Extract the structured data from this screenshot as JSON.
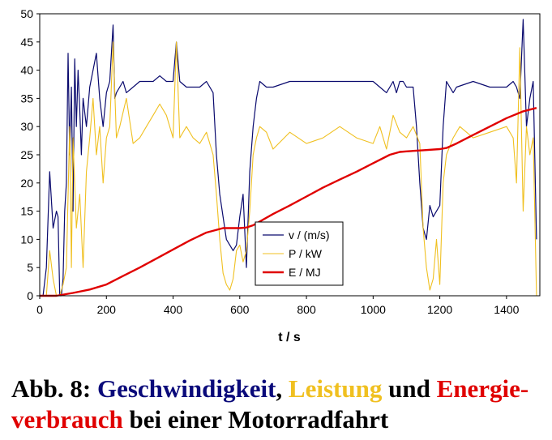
{
  "chart_data": {
    "type": "line",
    "xlabel": "t / s",
    "ylabel": "",
    "xlim": [
      0,
      1500
    ],
    "ylim": [
      0,
      50
    ],
    "xticks": [
      0,
      200,
      400,
      600,
      800,
      1000,
      1200,
      1400
    ],
    "yticks": [
      0,
      5,
      10,
      15,
      20,
      25,
      30,
      35,
      40,
      45,
      50
    ],
    "grid": false,
    "legend_placement": "center-bottom",
    "series": [
      {
        "name": "v / (m/s)",
        "color": "#0a0a6e",
        "x": [
          0,
          10,
          20,
          30,
          40,
          50,
          55,
          60,
          65,
          70,
          75,
          80,
          85,
          90,
          95,
          100,
          105,
          110,
          115,
          120,
          125,
          130,
          140,
          150,
          160,
          170,
          180,
          190,
          200,
          210,
          220,
          225,
          230,
          240,
          250,
          260,
          280,
          300,
          320,
          340,
          360,
          380,
          400,
          410,
          420,
          440,
          460,
          480,
          500,
          520,
          530,
          540,
          550,
          560,
          570,
          580,
          590,
          600,
          610,
          620,
          630,
          640,
          650,
          660,
          680,
          700,
          750,
          800,
          850,
          900,
          950,
          1000,
          1020,
          1040,
          1050,
          1060,
          1070,
          1080,
          1090,
          1100,
          1110,
          1120,
          1130,
          1140,
          1150,
          1160,
          1170,
          1180,
          1190,
          1200,
          1210,
          1220,
          1230,
          1240,
          1250,
          1300,
          1350,
          1400,
          1420,
          1430,
          1440,
          1450,
          1460,
          1470,
          1480,
          1490
        ],
        "values": [
          0,
          0,
          5,
          22,
          12,
          15,
          14,
          0,
          0,
          3,
          15,
          20,
          43,
          25,
          37,
          15,
          42,
          30,
          40,
          33,
          25,
          35,
          30,
          37,
          40,
          43,
          35,
          30,
          36,
          38,
          48,
          35,
          36,
          37,
          38,
          36,
          37,
          38,
          38,
          38,
          39,
          38,
          38,
          45,
          38,
          37,
          37,
          37,
          38,
          36,
          25,
          18,
          14,
          10,
          9,
          8,
          9,
          14,
          18,
          5,
          22,
          30,
          35,
          38,
          37,
          37,
          38,
          38,
          38,
          38,
          38,
          38,
          37,
          36,
          37,
          38,
          36,
          38,
          38,
          37,
          37,
          37,
          30,
          20,
          12,
          10,
          16,
          14,
          15,
          16,
          30,
          38,
          37,
          36,
          37,
          38,
          37,
          37,
          38,
          37,
          35,
          49,
          30,
          35,
          38,
          10
        ]
      },
      {
        "name": "P / kW",
        "color": "#f0c020",
        "x": [
          0,
          10,
          20,
          30,
          40,
          50,
          60,
          70,
          80,
          90,
          95,
          100,
          110,
          120,
          130,
          140,
          150,
          160,
          170,
          180,
          190,
          200,
          210,
          220,
          230,
          240,
          260,
          280,
          300,
          320,
          340,
          360,
          380,
          400,
          410,
          420,
          440,
          460,
          480,
          500,
          520,
          530,
          540,
          550,
          560,
          570,
          580,
          590,
          600,
          610,
          620,
          630,
          640,
          650,
          660,
          680,
          700,
          750,
          800,
          850,
          900,
          950,
          1000,
          1020,
          1040,
          1060,
          1080,
          1100,
          1120,
          1140,
          1150,
          1160,
          1170,
          1180,
          1190,
          1200,
          1210,
          1220,
          1240,
          1260,
          1300,
          1350,
          1400,
          1420,
          1430,
          1440,
          1450,
          1460,
          1470,
          1480,
          1490
        ],
        "values": [
          0,
          0,
          0,
          8,
          3,
          0,
          0,
          2,
          5,
          30,
          5,
          28,
          12,
          18,
          5,
          22,
          28,
          35,
          25,
          30,
          20,
          28,
          30,
          45,
          28,
          30,
          35,
          27,
          28,
          30,
          32,
          34,
          32,
          28,
          45,
          28,
          30,
          28,
          27,
          29,
          25,
          18,
          10,
          4,
          2,
          1,
          3,
          8,
          9,
          6,
          8,
          15,
          25,
          28,
          30,
          29,
          26,
          29,
          27,
          28,
          30,
          28,
          27,
          30,
          26,
          32,
          29,
          28,
          30,
          27,
          12,
          5,
          1,
          3,
          10,
          2,
          20,
          25,
          28,
          30,
          28,
          29,
          30,
          28,
          20,
          44,
          15,
          30,
          25,
          28,
          0
        ]
      },
      {
        "name": "E / MJ",
        "color": "#e00000",
        "x": [
          0,
          50,
          100,
          150,
          200,
          250,
          300,
          350,
          400,
          450,
          500,
          550,
          600,
          620,
          640,
          700,
          750,
          800,
          850,
          900,
          950,
          1000,
          1050,
          1080,
          1100,
          1150,
          1200,
          1220,
          1250,
          1300,
          1350,
          1400,
          1450,
          1490
        ],
        "values": [
          0,
          0,
          0.5,
          1.1,
          2,
          3.5,
          5,
          6.6,
          8.2,
          9.8,
          11.2,
          12,
          12,
          12.1,
          12.5,
          14.5,
          16,
          17.6,
          19.2,
          20.6,
          22,
          23.5,
          25,
          25.5,
          25.6,
          25.8,
          26,
          26.2,
          27,
          28.5,
          30,
          31.5,
          32.7,
          33.3
        ]
      }
    ]
  },
  "caption": {
    "prefix": "Abb. 8: ",
    "part1": "Geschwindigkeit",
    "sep1": ", ",
    "part2": "Leistung",
    "sep2": " und ",
    "part3": "Energie-",
    "part3b": "verbrauch",
    "suffix": " bei einer Motorradfahrt",
    "colors": {
      "part1": "#0a0a7a",
      "part2": "#f0c020",
      "part3": "#e00000",
      "text": "#000000"
    }
  }
}
